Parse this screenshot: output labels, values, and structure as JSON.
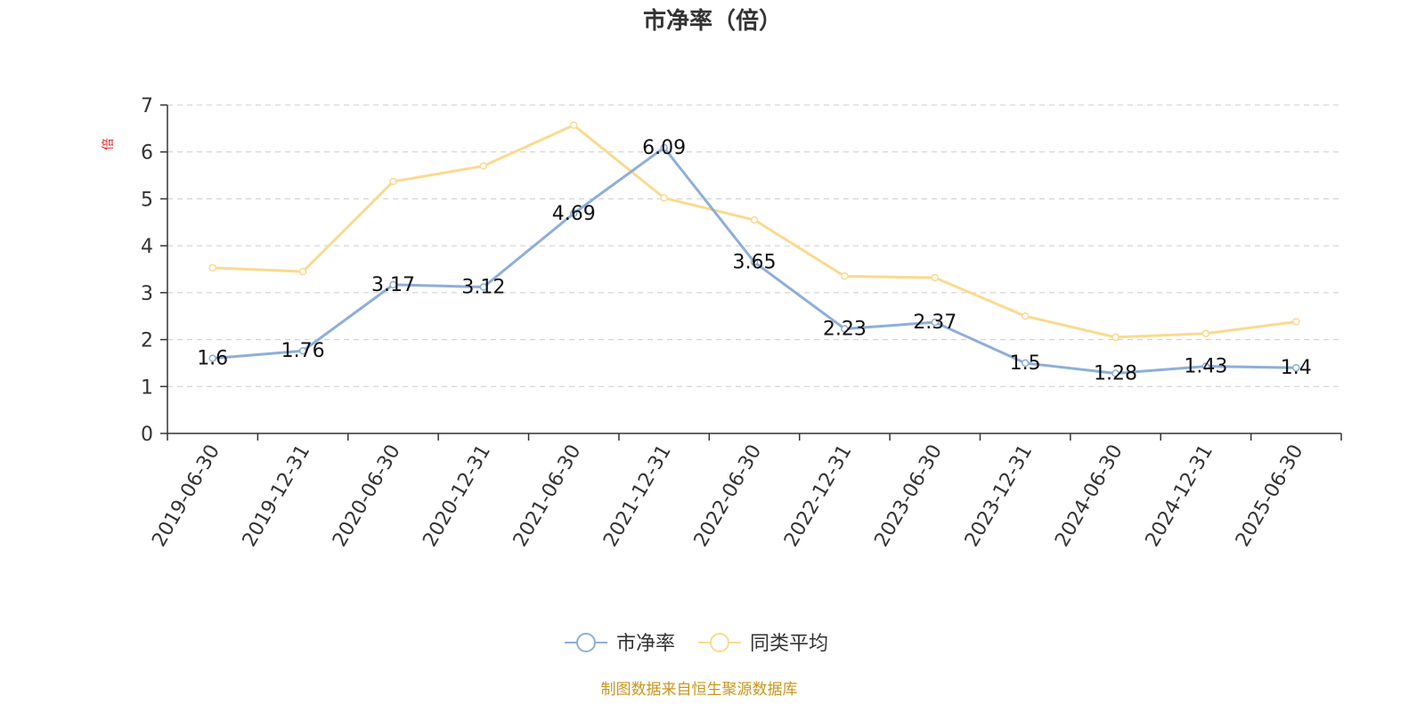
{
  "chart_data": {
    "type": "line",
    "title": "市净率（倍）",
    "ylabel": "倍",
    "xlabel": "",
    "ylim": [
      0,
      7
    ],
    "yticks": [
      0,
      1,
      2,
      3,
      4,
      5,
      6,
      7
    ],
    "grid": true,
    "legend_position": "bottom",
    "categories": [
      "2019-06-30",
      "2019-12-31",
      "2020-06-30",
      "2020-12-31",
      "2021-06-30",
      "2021-12-31",
      "2022-06-30",
      "2022-12-31",
      "2023-06-30",
      "2023-12-31",
      "2024-06-30",
      "2024-12-31",
      "2025-06-30"
    ],
    "series": [
      {
        "name": "市净率",
        "color": "#8eaed8",
        "values": [
          1.6,
          1.76,
          3.17,
          3.12,
          4.69,
          6.09,
          3.65,
          2.23,
          2.37,
          1.5,
          1.28,
          1.43,
          1.4
        ],
        "labels": [
          "1.6",
          "1.76",
          "3.17",
          "3.12",
          "4.69",
          "6.09",
          "3.65",
          "2.23",
          "2.37",
          "1.5",
          "1.28",
          "1.43",
          "1.4"
        ]
      },
      {
        "name": "同类平均",
        "color": "#fbd98f",
        "values": [
          3.53,
          3.45,
          5.37,
          5.7,
          6.57,
          5.02,
          4.55,
          3.35,
          3.32,
          2.5,
          2.05,
          2.13,
          2.38
        ]
      }
    ],
    "source": "制图数据来自恒生聚源数据库",
    "source_color": "#c8961e"
  }
}
